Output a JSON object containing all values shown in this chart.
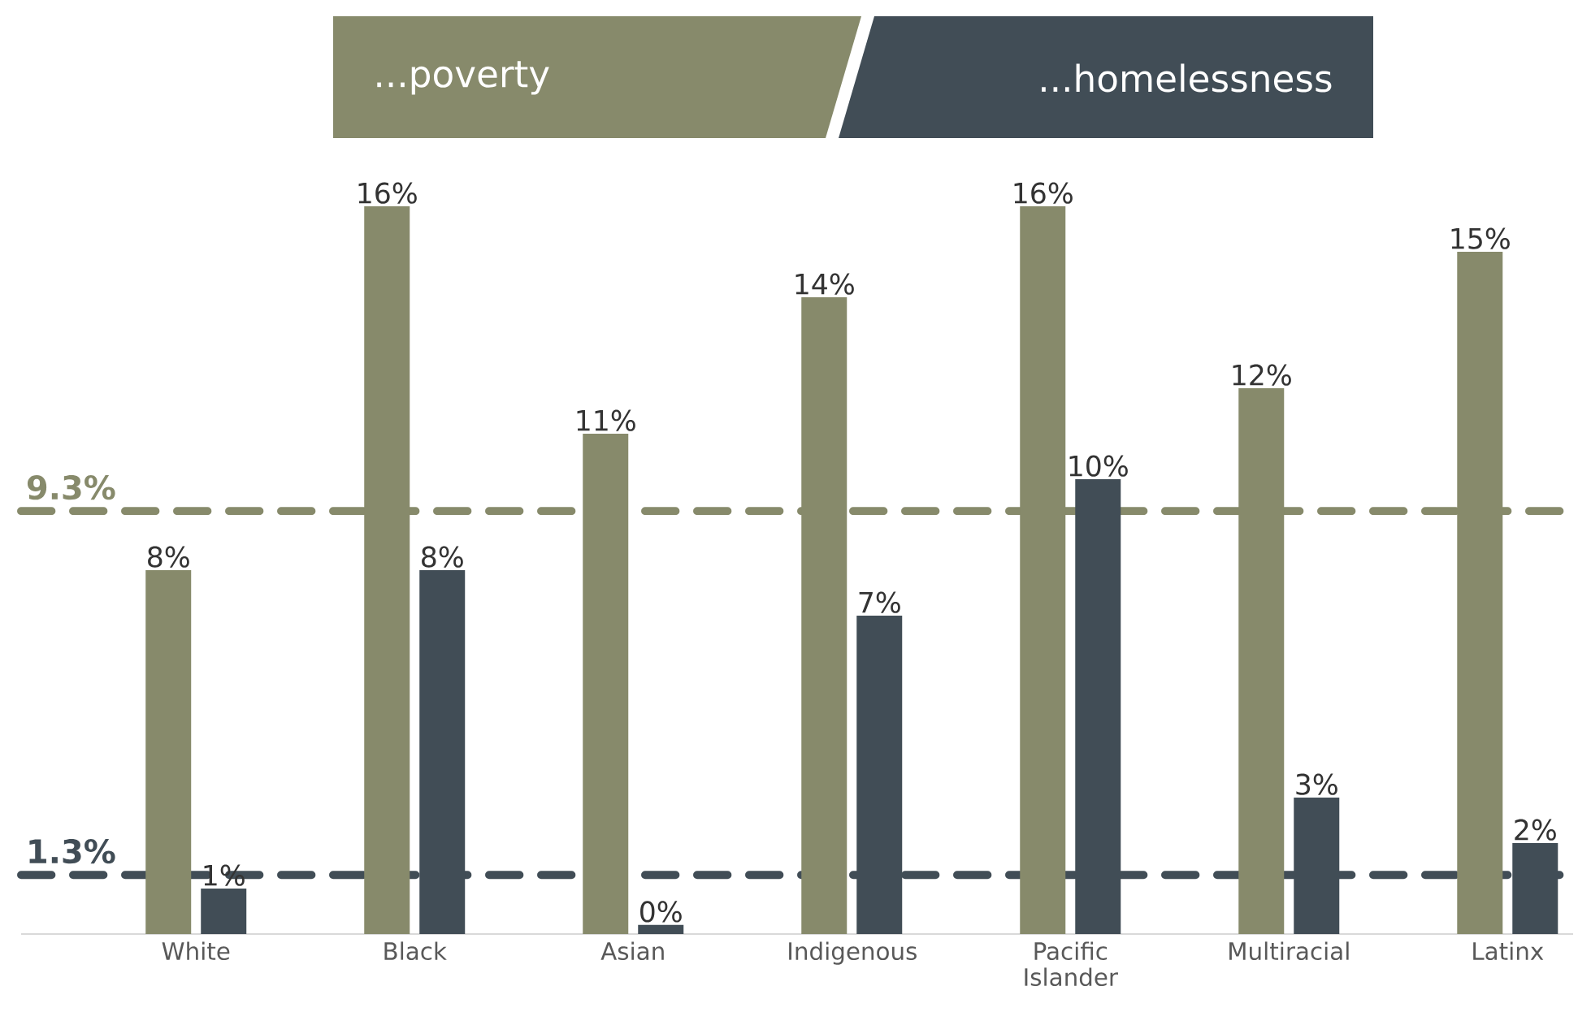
{
  "chart_data": {
    "type": "bar",
    "categories": [
      "White",
      "Black",
      "Asian",
      "Indigenous",
      "Pacific Islander",
      "Multiracial",
      "Latinx"
    ],
    "series": [
      {
        "name": "...poverty",
        "color": "#878a6b",
        "values": [
          8,
          16,
          11,
          14,
          16,
          12,
          15
        ],
        "value_labels": [
          "8%",
          "16%",
          "11%",
          "14%",
          "16%",
          "12%",
          "15%"
        ]
      },
      {
        "name": "...homelessness",
        "color": "#414d56",
        "values": [
          1,
          8,
          0.2,
          7,
          10,
          3,
          2
        ],
        "value_labels": [
          "1%",
          "8%",
          "0%",
          "7%",
          "10%",
          "3%",
          "2%"
        ]
      }
    ],
    "ref_lines": [
      {
        "axis": "y",
        "value": 9.3,
        "label": "9.3%",
        "color": "#878a6b",
        "line_style": "dashed"
      },
      {
        "axis": "y",
        "value": 1.3,
        "label": "1.3%",
        "color": "#414d56",
        "line_style": "dashed"
      }
    ],
    "legend": "top"
  }
}
